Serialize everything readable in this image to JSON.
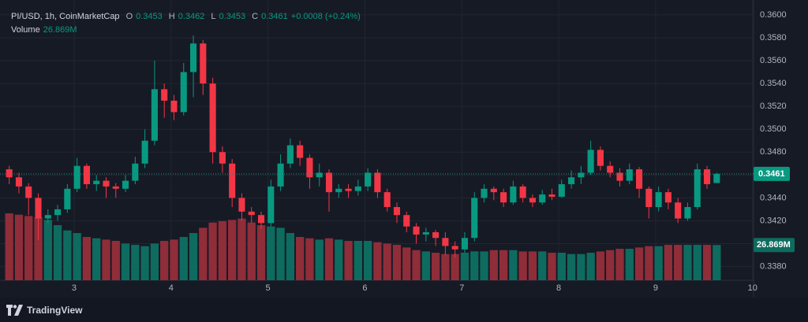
{
  "chart_data": {
    "type": "candlestick",
    "symbol": "PI/USD, 1h, CoinMarketCap",
    "open_label": "O",
    "high_label": "H",
    "low_label": "L",
    "close_label": "C",
    "change_label": "+0.0008 (+0.24%)",
    "volume_title": "Volume",
    "volume_label": "26.869M",
    "x": [
      2.33,
      2.43,
      2.53,
      2.63,
      2.73,
      2.83,
      2.93,
      3.03,
      3.13,
      3.23,
      3.33,
      3.43,
      3.53,
      3.63,
      3.73,
      3.83,
      3.93,
      4.03,
      4.13,
      4.23,
      4.33,
      4.43,
      4.53,
      4.63,
      4.73,
      4.83,
      4.93,
      5.03,
      5.13,
      5.23,
      5.33,
      5.43,
      5.53,
      5.63,
      5.73,
      5.83,
      5.93,
      6.03,
      6.13,
      6.23,
      6.33,
      6.43,
      6.53,
      6.63,
      6.73,
      6.83,
      6.93,
      7.03,
      7.13,
      7.23,
      7.33,
      7.43,
      7.53,
      7.63,
      7.73,
      7.83,
      7.93,
      8.03,
      8.13,
      8.23,
      8.33,
      8.43,
      8.53,
      8.63,
      8.73,
      8.83,
      8.93,
      9.03,
      9.13,
      9.23,
      9.33,
      9.43,
      9.53,
      9.63
    ],
    "open": [
      0.3465,
      0.3458,
      0.345,
      0.344,
      0.3422,
      0.3425,
      0.343,
      0.3448,
      0.3468,
      0.3452,
      0.3455,
      0.345,
      0.3448,
      0.3455,
      0.347,
      0.349,
      0.3535,
      0.3525,
      0.3515,
      0.355,
      0.3575,
      0.354,
      0.348,
      0.347,
      0.344,
      0.3428,
      0.3425,
      0.3418,
      0.345,
      0.347,
      0.3486,
      0.3475,
      0.3458,
      0.3462,
      0.3445,
      0.3448,
      0.3446,
      0.345,
      0.3462,
      0.3445,
      0.3432,
      0.3425,
      0.3415,
      0.3408,
      0.341,
      0.3405,
      0.3398,
      0.3395,
      0.3405,
      0.344,
      0.3448,
      0.3445,
      0.3436,
      0.345,
      0.344,
      0.3436,
      0.3443,
      0.3441,
      0.3452,
      0.3458,
      0.3462,
      0.3482,
      0.3468,
      0.3462,
      0.3455,
      0.3465,
      0.3448,
      0.3432,
      0.3445,
      0.3436,
      0.3422,
      0.3432,
      0.3465,
      0.3453
    ],
    "high": [
      0.3468,
      0.3462,
      0.3453,
      0.3444,
      0.343,
      0.3434,
      0.3452,
      0.3475,
      0.347,
      0.346,
      0.3458,
      0.3453,
      0.346,
      0.3476,
      0.35,
      0.356,
      0.354,
      0.353,
      0.3558,
      0.3582,
      0.3578,
      0.3545,
      0.3485,
      0.3474,
      0.3444,
      0.3432,
      0.3428,
      0.3456,
      0.3478,
      0.3492,
      0.349,
      0.3478,
      0.347,
      0.3465,
      0.3452,
      0.3452,
      0.3456,
      0.3466,
      0.3465,
      0.3448,
      0.3436,
      0.3428,
      0.3418,
      0.3414,
      0.3412,
      0.341,
      0.3402,
      0.341,
      0.3445,
      0.3452,
      0.345,
      0.3448,
      0.3455,
      0.3452,
      0.3443,
      0.3447,
      0.3448,
      0.3456,
      0.3464,
      0.3468,
      0.349,
      0.3485,
      0.3472,
      0.3466,
      0.347,
      0.3467,
      0.345,
      0.345,
      0.3448,
      0.344,
      0.3436,
      0.347,
      0.3468,
      0.3462
    ],
    "low": [
      0.3452,
      0.3444,
      0.3425,
      0.3403,
      0.3418,
      0.342,
      0.3427,
      0.3445,
      0.3448,
      0.3446,
      0.344,
      0.344,
      0.3445,
      0.3452,
      0.3466,
      0.3486,
      0.351,
      0.3508,
      0.3512,
      0.3528,
      0.353,
      0.347,
      0.3462,
      0.3432,
      0.342,
      0.3418,
      0.3413,
      0.3415,
      0.3446,
      0.3466,
      0.3468,
      0.3448,
      0.345,
      0.3428,
      0.344,
      0.344,
      0.3442,
      0.3446,
      0.344,
      0.3428,
      0.3418,
      0.341,
      0.34,
      0.3402,
      0.3398,
      0.339,
      0.3388,
      0.3392,
      0.3402,
      0.3436,
      0.3438,
      0.3432,
      0.3434,
      0.3436,
      0.3432,
      0.3434,
      0.3438,
      0.344,
      0.3448,
      0.3452,
      0.346,
      0.3464,
      0.3458,
      0.345,
      0.3452,
      0.344,
      0.3422,
      0.3428,
      0.343,
      0.3418,
      0.342,
      0.343,
      0.3448,
      0.3453
    ],
    "close": [
      0.3458,
      0.345,
      0.344,
      0.3422,
      0.3425,
      0.343,
      0.3448,
      0.3468,
      0.3452,
      0.3455,
      0.345,
      0.3448,
      0.3455,
      0.347,
      0.349,
      0.3535,
      0.3525,
      0.3515,
      0.355,
      0.3575,
      0.354,
      0.348,
      0.347,
      0.344,
      0.3428,
      0.3425,
      0.3418,
      0.345,
      0.347,
      0.3486,
      0.3475,
      0.3458,
      0.3462,
      0.3445,
      0.3448,
      0.3446,
      0.345,
      0.3462,
      0.3445,
      0.3432,
      0.3425,
      0.3415,
      0.3408,
      0.341,
      0.3405,
      0.3398,
      0.3395,
      0.3405,
      0.344,
      0.3448,
      0.3445,
      0.3436,
      0.345,
      0.344,
      0.3436,
      0.3443,
      0.3441,
      0.3452,
      0.3458,
      0.3462,
      0.3482,
      0.3468,
      0.3462,
      0.3455,
      0.3465,
      0.3448,
      0.3432,
      0.3445,
      0.3436,
      0.3422,
      0.3432,
      0.3465,
      0.3452,
      0.3461
    ],
    "volume": [
      51,
      50,
      49,
      48,
      46,
      42,
      38,
      36,
      33,
      32,
      31,
      30,
      28,
      27,
      26,
      28,
      30,
      31,
      33,
      36,
      40,
      44,
      45,
      46,
      47,
      44,
      42,
      41,
      40,
      36,
      33,
      32,
      31,
      32,
      31,
      30,
      30,
      30,
      29,
      28,
      27,
      25,
      23,
      22,
      21,
      20,
      20,
      21,
      22,
      22,
      23,
      23,
      23,
      22,
      22,
      22,
      21,
      21,
      20,
      20,
      21,
      22,
      23,
      24,
      24,
      25,
      26,
      26,
      27,
      27,
      27,
      27,
      27,
      26.869
    ],
    "up_color": "#089981",
    "down_color": "#f23645",
    "volume_up_color": "#0e6b5f",
    "volume_down_color": "#8f2d39",
    "xlim": [
      2.235,
      10.01
    ],
    "xticks": [
      3,
      4,
      5,
      6,
      7,
      8,
      9,
      10
    ],
    "ylim": [
      0.3368,
      0.3613
    ],
    "yticks": [
      {
        "value": 0.338,
        "label": "0.3380"
      },
      {
        "value": 0.34,
        "label": "0.3400"
      },
      {
        "value": 0.342,
        "label": "0.3420"
      },
      {
        "value": 0.344,
        "label": "0.3440"
      },
      {
        "value": 0.346,
        "label": "0.3460"
      },
      {
        "value": 0.348,
        "label": "0.3480"
      },
      {
        "value": 0.35,
        "label": "0.3500"
      },
      {
        "value": 0.352,
        "label": "0.3520"
      },
      {
        "value": 0.354,
        "label": "0.3540"
      },
      {
        "value": 0.356,
        "label": "0.3560"
      },
      {
        "value": 0.358,
        "label": "0.3580"
      },
      {
        "value": 0.36,
        "label": "0.3600"
      }
    ],
    "volume_ylim": [
      0,
      60
    ],
    "grid": true
  },
  "brand": "TradingView"
}
